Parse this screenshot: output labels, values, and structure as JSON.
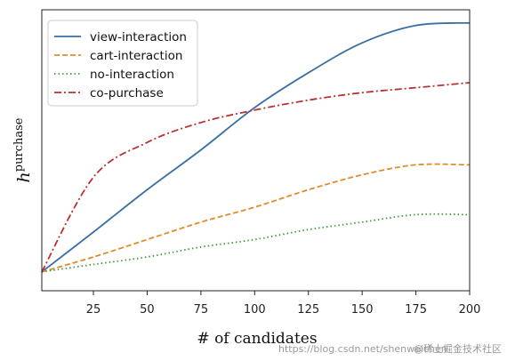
{
  "chart_data": {
    "type": "line",
    "xlabel": "# of candidates",
    "ylabel": "h",
    "ylabel_superscript": "purchase",
    "xlim": [
      1,
      200
    ],
    "ylim": [
      0,
      1
    ],
    "x_ticks": [
      25,
      50,
      75,
      100,
      125,
      150,
      175,
      200
    ],
    "y_ticks_shown": false,
    "grid": false,
    "legend_position": "top-left",
    "x": [
      1,
      25,
      50,
      75,
      100,
      125,
      150,
      175,
      200
    ],
    "series": [
      {
        "name": "view-interaction",
        "color": "#3a6fa3",
        "style": "solid",
        "values": [
          0.04,
          0.2,
          0.37,
          0.53,
          0.7,
          0.84,
          0.96,
          1.03,
          1.04
        ]
      },
      {
        "name": "cart-interaction",
        "color": "#e08b2c",
        "style": "dashed",
        "values": [
          0.04,
          0.1,
          0.17,
          0.24,
          0.3,
          0.37,
          0.43,
          0.47,
          0.47
        ]
      },
      {
        "name": "no-interaction",
        "color": "#3f9a3f",
        "style": "dotted",
        "values": [
          0.04,
          0.07,
          0.1,
          0.14,
          0.17,
          0.21,
          0.24,
          0.27,
          0.27
        ]
      },
      {
        "name": "co-purchase",
        "color": "#b83232",
        "style": "dashdot",
        "values": [
          0.04,
          0.42,
          0.56,
          0.64,
          0.69,
          0.73,
          0.76,
          0.78,
          0.8
        ]
      }
    ]
  },
  "watermark": "https://blog.csdn.net/shenweichen",
  "watermark_brand": "@稀土掘金技术社区"
}
